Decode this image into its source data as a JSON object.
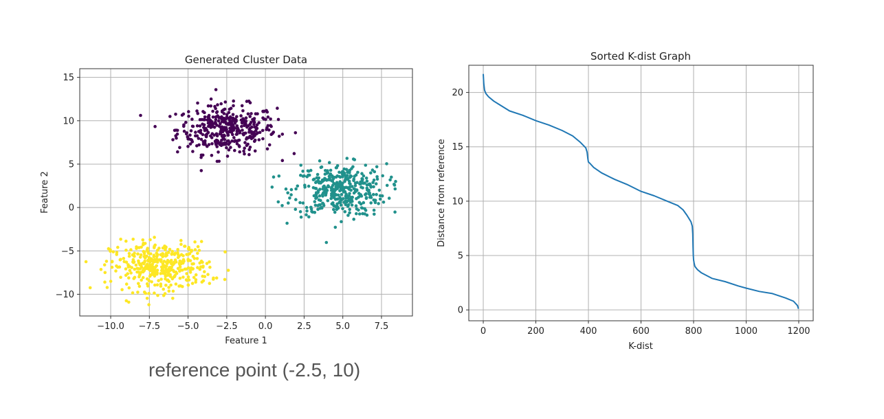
{
  "caption": "reference point (-2.5, 10)",
  "chart_data": [
    {
      "type": "scatter",
      "title": "Generated Cluster Data",
      "xlabel": "Feature 1",
      "ylabel": "Feature 2",
      "xlim": [
        -12.0,
        9.5
      ],
      "ylim": [
        -12.5,
        16.0
      ],
      "xticks": [
        -10.0,
        -7.5,
        -5.0,
        -2.5,
        0.0,
        2.5,
        5.0,
        7.5
      ],
      "xtick_labels": [
        "−10.0",
        "−7.5",
        "−5.0",
        "−2.5",
        "0.0",
        "2.5",
        "5.0",
        "7.5"
      ],
      "yticks": [
        15,
        10,
        5,
        0,
        -5,
        -10
      ],
      "ytick_labels": [
        "15",
        "10",
        "5",
        "0",
        "−5",
        "−10"
      ],
      "grid": true,
      "series": [
        {
          "color": "#440154",
          "center": [
            -2.5,
            9.0
          ],
          "std": [
            1.6,
            1.4
          ],
          "count": 400
        },
        {
          "color": "#21918c",
          "center": [
            4.8,
            2.0
          ],
          "std": [
            1.5,
            1.5
          ],
          "count": 400
        },
        {
          "color": "#fde725",
          "center": [
            -6.8,
            -6.8
          ],
          "std": [
            1.6,
            1.4
          ],
          "count": 400
        }
      ]
    },
    {
      "type": "line",
      "title": "Sorted K-dist Graph",
      "xlabel": "K-dist",
      "ylabel": "Distance from reference",
      "xlim": [
        -55,
        1255
      ],
      "ylim": [
        -1.0,
        22.5
      ],
      "xticks": [
        0,
        200,
        400,
        600,
        800,
        1000,
        1200
      ],
      "xtick_labels": [
        "0",
        "200",
        "400",
        "600",
        "800",
        "1000",
        "1200"
      ],
      "yticks": [
        0,
        5,
        10,
        15,
        20
      ],
      "ytick_labels": [
        "0",
        "5",
        "10",
        "15",
        "20"
      ],
      "grid": true,
      "series": [
        {
          "color": "#1f77b4",
          "x": [
            0,
            2,
            5,
            10,
            20,
            40,
            60,
            100,
            150,
            200,
            250,
            300,
            340,
            370,
            390,
            395,
            398,
            400,
            405,
            420,
            450,
            500,
            550,
            600,
            650,
            700,
            740,
            760,
            775,
            785,
            790,
            795,
            797,
            798,
            799,
            800,
            802,
            805,
            815,
            830,
            870,
            920,
            970,
            1000,
            1050,
            1100,
            1150,
            1180,
            1195,
            1199
          ],
          "y": [
            21.7,
            20.8,
            20.2,
            19.9,
            19.6,
            19.2,
            18.9,
            18.3,
            17.9,
            17.4,
            17.0,
            16.5,
            16.0,
            15.4,
            14.9,
            14.5,
            13.9,
            13.6,
            13.5,
            13.1,
            12.6,
            12.0,
            11.5,
            10.9,
            10.5,
            10.0,
            9.6,
            9.2,
            8.7,
            8.3,
            8.1,
            7.7,
            7.0,
            5.8,
            5.0,
            4.6,
            4.3,
            4.0,
            3.7,
            3.4,
            2.9,
            2.6,
            2.2,
            2.0,
            1.7,
            1.5,
            1.1,
            0.8,
            0.4,
            0.1
          ]
        }
      ]
    }
  ]
}
